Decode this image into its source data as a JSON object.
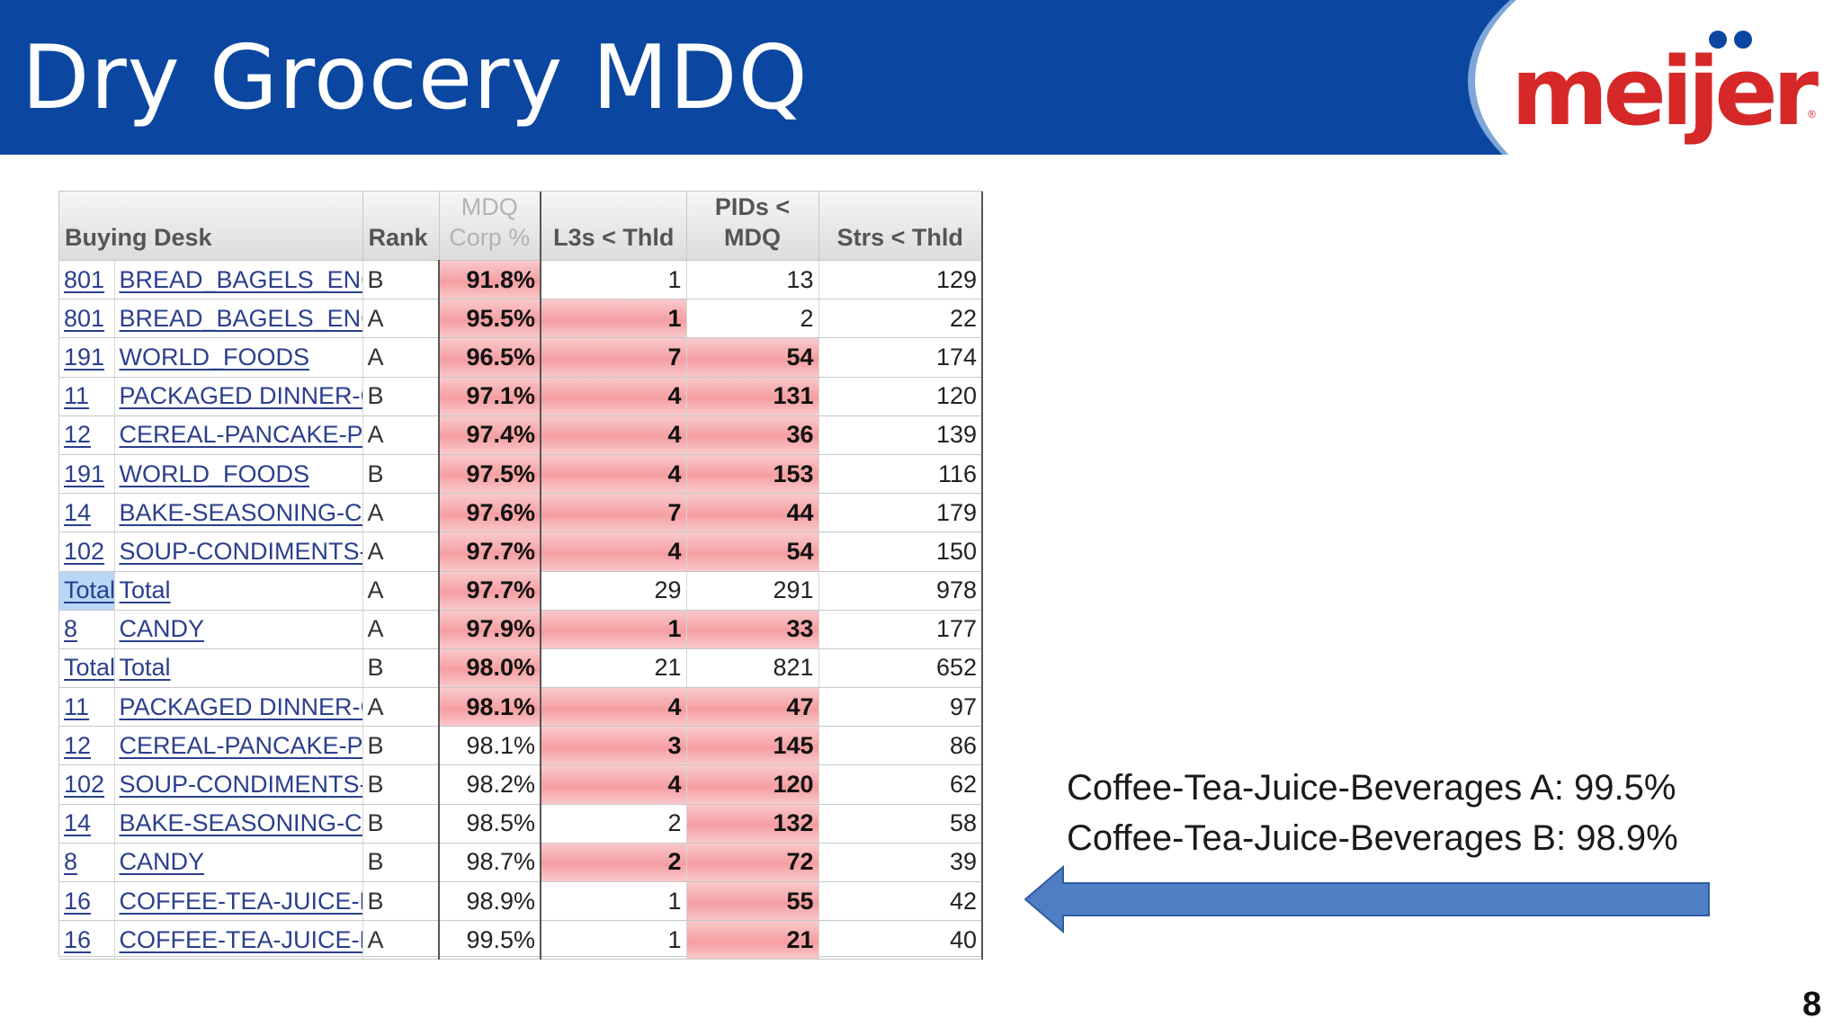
{
  "slide": {
    "title": "Dry Grocery MDQ",
    "logo": "meijer",
    "page_number": "8"
  },
  "colors": {
    "header_bg": "#0b47a1",
    "logo_red": "#d62828",
    "highlight_red": "#f59ea2",
    "arrow_fill": "#4f7ec4"
  },
  "table": {
    "headers": {
      "buying_desk": "Buying Desk",
      "rank": "Rank",
      "mdq_corp_line1": "MDQ",
      "mdq_corp_line2": "Corp %",
      "l3s": "L3s < Thld",
      "pids_line1": "PIDs <",
      "pids_line2": "MDQ",
      "strs": "Strs < Thld"
    },
    "rows": [
      {
        "code": "801",
        "desk": "BREAD_BAGELS_ENG",
        "rank": "B",
        "mdq": "91.8%",
        "l3s": "1",
        "pids": "13",
        "strs": "129",
        "hl": [
          1,
          0,
          0
        ]
      },
      {
        "code": "801",
        "desk": "BREAD_BAGELS_ENG",
        "rank": "A",
        "mdq": "95.5%",
        "l3s": "1",
        "pids": "2",
        "strs": "22",
        "hl": [
          1,
          1,
          0
        ]
      },
      {
        "code": "191",
        "desk": "WORLD_FOODS",
        "rank": "A",
        "mdq": "96.5%",
        "l3s": "7",
        "pids": "54",
        "strs": "174",
        "hl": [
          1,
          1,
          1
        ]
      },
      {
        "code": "11",
        "desk": "PACKAGED DINNER-C",
        "rank": "B",
        "mdq": "97.1%",
        "l3s": "4",
        "pids": "131",
        "strs": "120",
        "hl": [
          1,
          1,
          1
        ]
      },
      {
        "code": "12",
        "desk": "CEREAL-PANCAKE-PE",
        "rank": "A",
        "mdq": "97.4%",
        "l3s": "4",
        "pids": "36",
        "strs": "139",
        "hl": [
          1,
          1,
          1
        ]
      },
      {
        "code": "191",
        "desk": "WORLD_FOODS",
        "rank": "B",
        "mdq": "97.5%",
        "l3s": "4",
        "pids": "153",
        "strs": "116",
        "hl": [
          1,
          1,
          1
        ]
      },
      {
        "code": "14",
        "desk": "BAKE-SEASONING-CA",
        "rank": "A",
        "mdq": "97.6%",
        "l3s": "7",
        "pids": "44",
        "strs": "179",
        "hl": [
          1,
          1,
          1
        ]
      },
      {
        "code": "102",
        "desk": "SOUP-CONDIMENTS-C",
        "rank": "A",
        "mdq": "97.7%",
        "l3s": "4",
        "pids": "54",
        "strs": "150",
        "hl": [
          1,
          1,
          1
        ]
      },
      {
        "code": "Total",
        "desk": "Total",
        "rank": "A",
        "mdq": "97.7%",
        "l3s": "29",
        "pids": "291",
        "strs": "978",
        "hl": [
          1,
          0,
          0
        ],
        "selected": true
      },
      {
        "code": "8",
        "desk": "CANDY",
        "rank": "A",
        "mdq": "97.9%",
        "l3s": "1",
        "pids": "33",
        "strs": "177",
        "hl": [
          1,
          1,
          1
        ]
      },
      {
        "code": "Total",
        "desk": "Total",
        "rank": "B",
        "mdq": "98.0%",
        "l3s": "21",
        "pids": "821",
        "strs": "652",
        "hl": [
          1,
          0,
          0
        ]
      },
      {
        "code": "11",
        "desk": "PACKAGED DINNER-C",
        "rank": "A",
        "mdq": "98.1%",
        "l3s": "4",
        "pids": "47",
        "strs": "97",
        "hl": [
          1,
          1,
          1
        ]
      },
      {
        "code": "12",
        "desk": "CEREAL-PANCAKE-PE",
        "rank": "B",
        "mdq": "98.1%",
        "l3s": "3",
        "pids": "145",
        "strs": "86",
        "hl": [
          0,
          1,
          1
        ]
      },
      {
        "code": "102",
        "desk": "SOUP-CONDIMENTS-C",
        "rank": "B",
        "mdq": "98.2%",
        "l3s": "4",
        "pids": "120",
        "strs": "62",
        "hl": [
          0,
          1,
          1
        ]
      },
      {
        "code": "14",
        "desk": "BAKE-SEASONING-CA",
        "rank": "B",
        "mdq": "98.5%",
        "l3s": "2",
        "pids": "132",
        "strs": "58",
        "hl": [
          0,
          0,
          1
        ]
      },
      {
        "code": "8",
        "desk": "CANDY",
        "rank": "B",
        "mdq": "98.7%",
        "l3s": "2",
        "pids": "72",
        "strs": "39",
        "hl": [
          0,
          1,
          1
        ]
      },
      {
        "code": "16",
        "desk": "COFFEE-TEA-JUICE-BE",
        "rank": "B",
        "mdq": "98.9%",
        "l3s": "1",
        "pids": "55",
        "strs": "42",
        "hl": [
          0,
          0,
          1
        ]
      },
      {
        "code": "16",
        "desk": "COFFEE-TEA-JUICE-BE",
        "rank": "A",
        "mdq": "99.5%",
        "l3s": "1",
        "pids": "21",
        "strs": "40",
        "hl": [
          0,
          0,
          1
        ]
      }
    ]
  },
  "annotation": {
    "line1": "Coffee-Tea-Juice-Beverages A: 99.5%",
    "line2": "Coffee-Tea-Juice-Beverages B: 98.9%"
  }
}
